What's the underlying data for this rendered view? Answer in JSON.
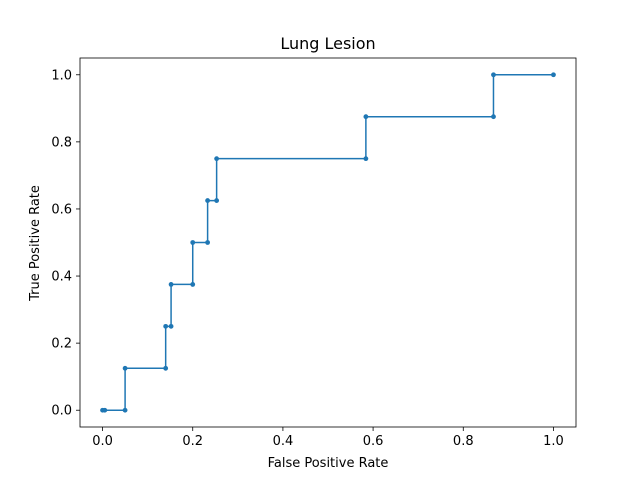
{
  "chart_data": {
    "type": "line",
    "title": "Lung Lesion",
    "xlabel": "False Positive Rate",
    "ylabel": "True Positive Rate",
    "xlim": [
      -0.05,
      1.05
    ],
    "ylim": [
      -0.05,
      1.05
    ],
    "xticks": [
      0.0,
      0.2,
      0.4,
      0.6,
      0.8,
      1.0
    ],
    "yticks": [
      0.0,
      0.2,
      0.4,
      0.6,
      0.8,
      1.0
    ],
    "xtick_labels": [
      "0.0",
      "0.2",
      "0.4",
      "0.6",
      "0.8",
      "1.0"
    ],
    "ytick_labels": [
      "0.0",
      "0.2",
      "0.4",
      "0.6",
      "0.8",
      "1.0"
    ],
    "grid": false,
    "series": [
      {
        "color": "#1f77b4",
        "marker": "circle",
        "x": [
          0.0,
          0.005,
          0.05,
          0.05,
          0.14,
          0.14,
          0.152,
          0.152,
          0.2,
          0.2,
          0.233,
          0.233,
          0.253,
          0.253,
          0.584,
          0.584,
          0.867,
          0.867,
          1.0
        ],
        "y": [
          0.0,
          0.0,
          0.0,
          0.125,
          0.125,
          0.25,
          0.25,
          0.375,
          0.375,
          0.5,
          0.5,
          0.625,
          0.625,
          0.75,
          0.75,
          0.875,
          0.875,
          1.0,
          1.0
        ]
      }
    ]
  }
}
